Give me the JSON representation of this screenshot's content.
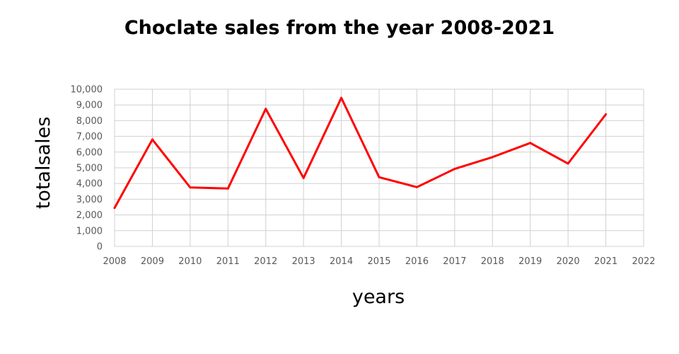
{
  "chart_data": {
    "type": "line",
    "title": "Choclate sales from the year 2008-2021",
    "xlabel": "years",
    "ylabel": "totalsales",
    "xlim": [
      2008,
      2022
    ],
    "ylim": [
      0,
      10000
    ],
    "x_ticks": [
      "2008",
      "2009",
      "2010",
      "2011",
      "2012",
      "2013",
      "2014",
      "2015",
      "2016",
      "2017",
      "2018",
      "2019",
      "2020",
      "2021",
      "2022"
    ],
    "y_ticks": [
      "0",
      "1,000",
      "2,000",
      "3,000",
      "4,000",
      "5,000",
      "6,000",
      "7,000",
      "8,000",
      "9,000",
      "10,000"
    ],
    "grid": true,
    "legend": "none",
    "series": [
      {
        "color": "#ff0000",
        "x": [
          2008,
          2009,
          2010,
          2011,
          2012,
          2013,
          2014,
          2015,
          2016,
          2017,
          2018,
          2019,
          2020,
          2021
        ],
        "values": [
          2450,
          6800,
          3750,
          3680,
          8750,
          4350,
          9450,
          4400,
          3770,
          4930,
          5680,
          6580,
          5270,
          8400
        ]
      }
    ]
  }
}
